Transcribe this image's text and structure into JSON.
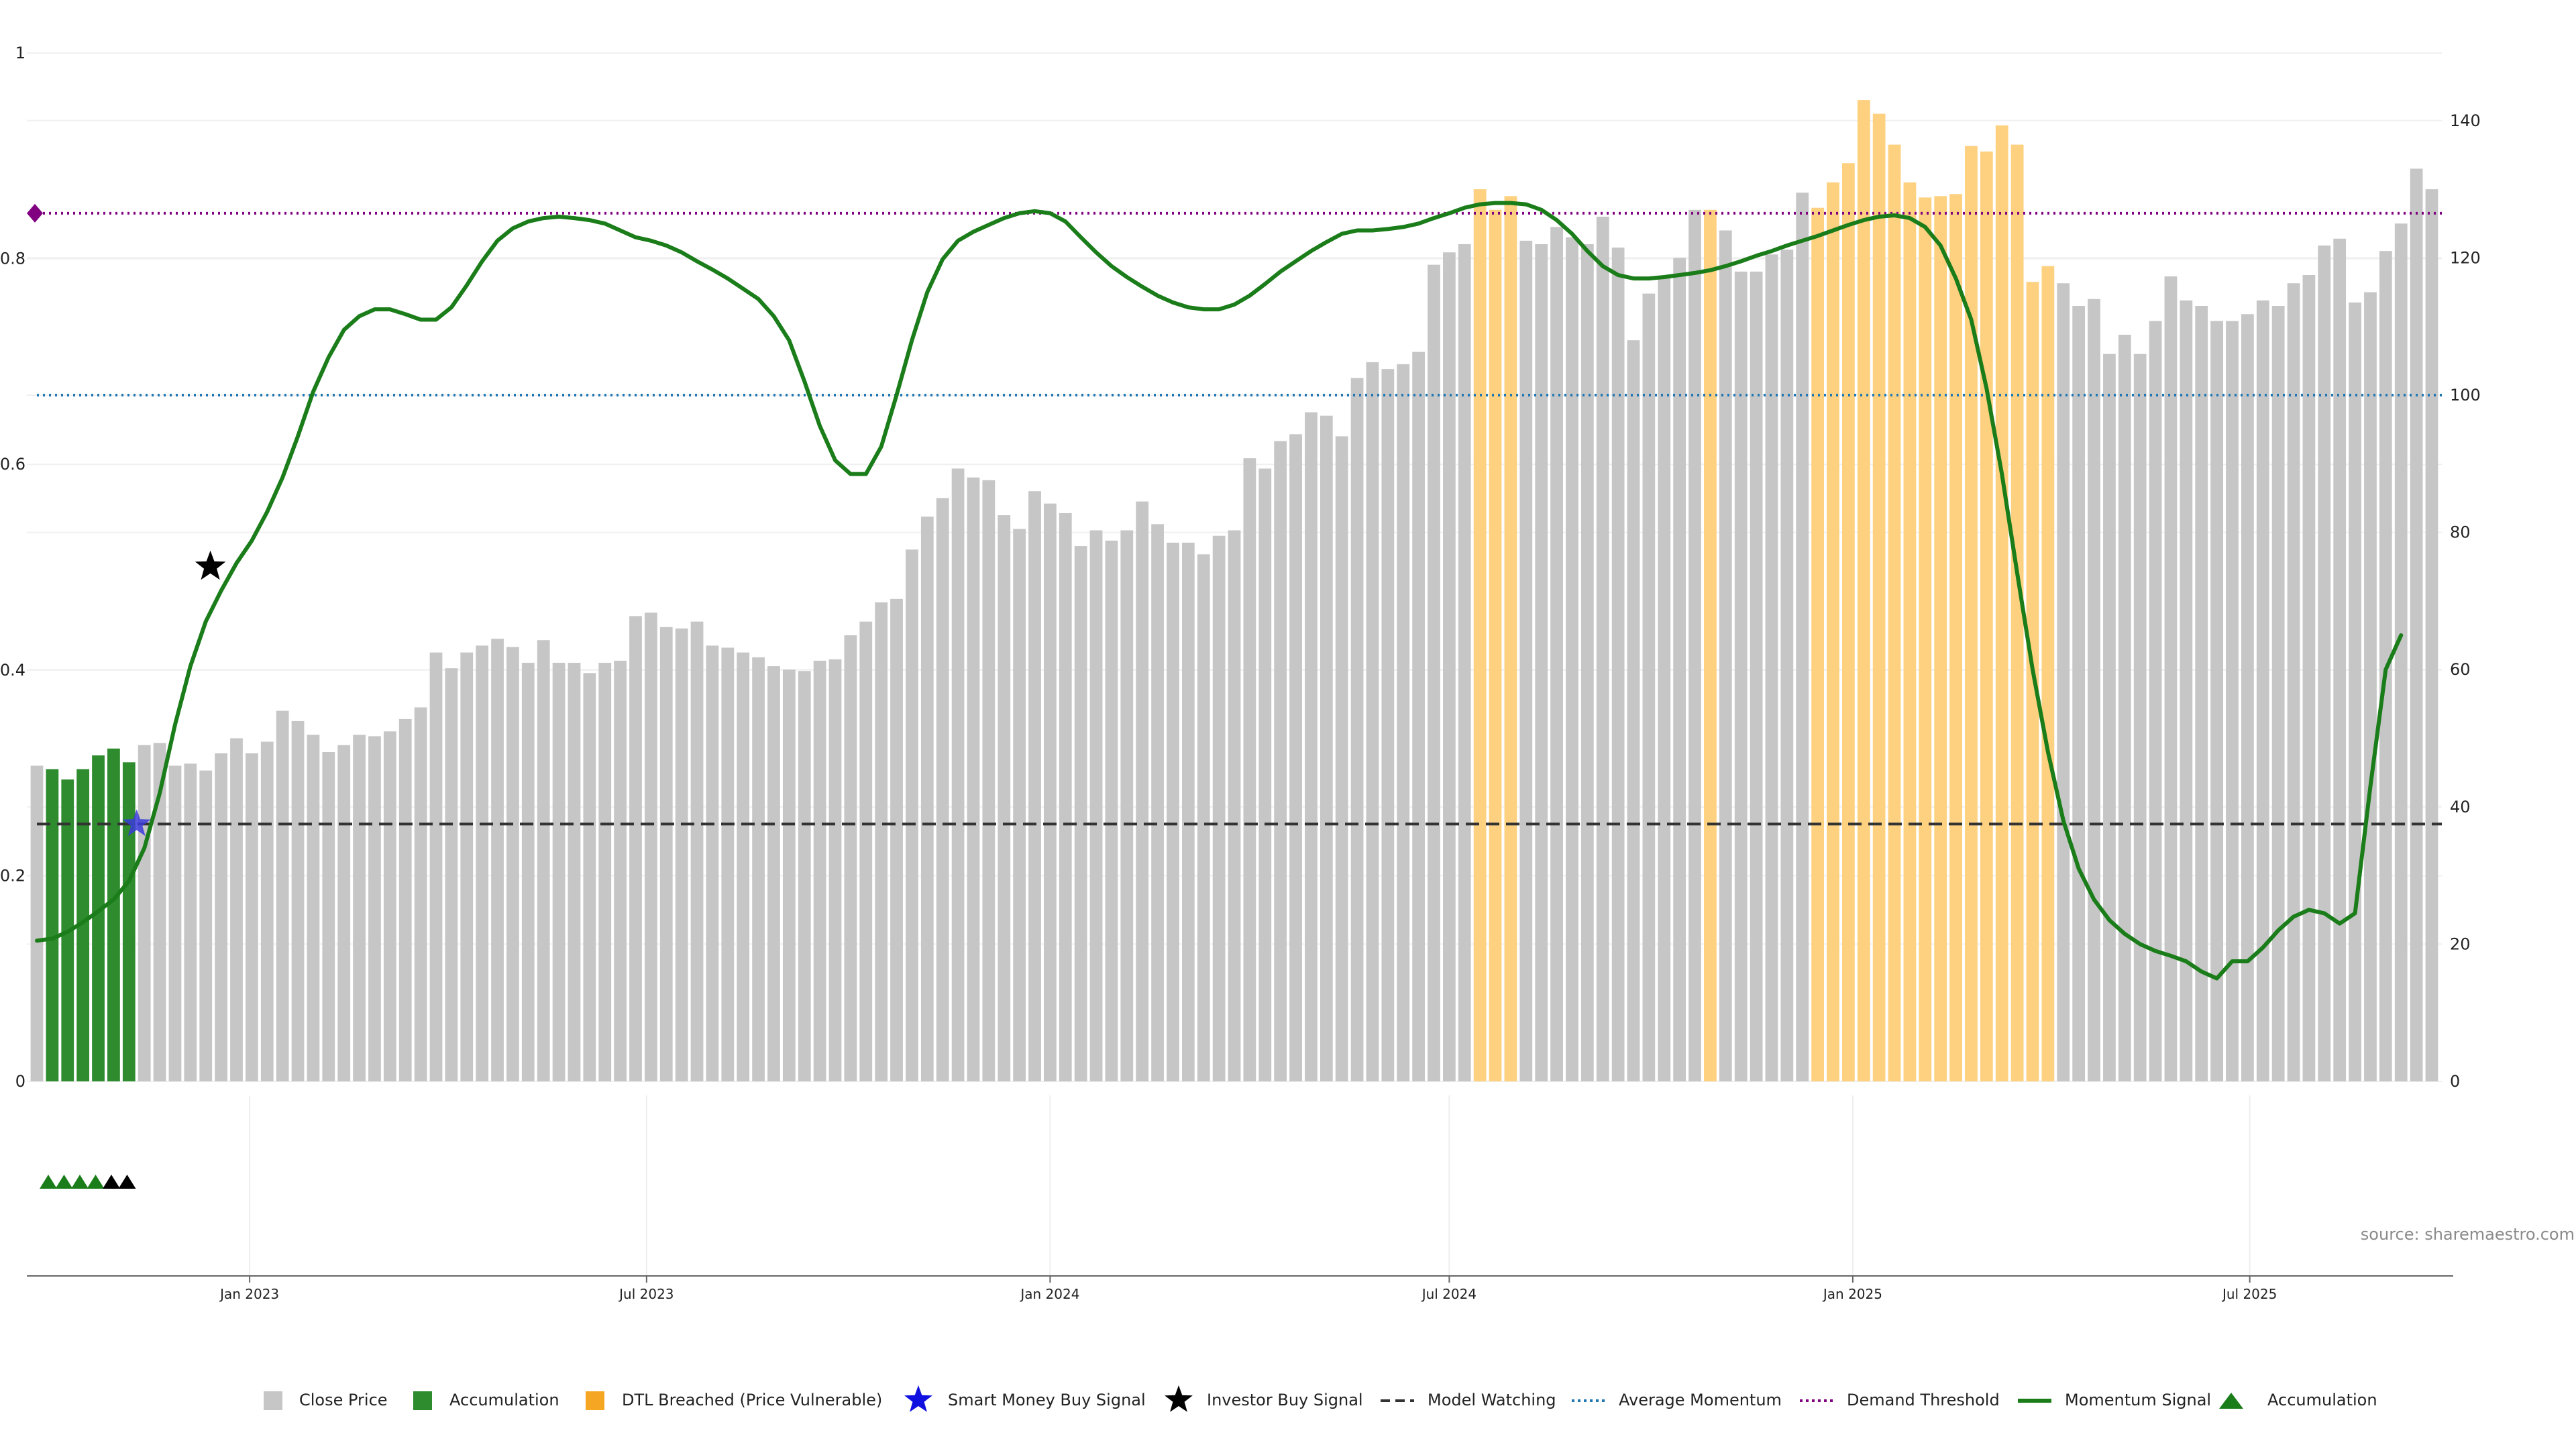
{
  "source_label": "source: sharemaestro.com",
  "colors": {
    "close_price": "#c6c6c6",
    "accumulation_bar": "#2e8b2e",
    "dtl_breached": "#fdd17f",
    "momentum_line": "#1a7d1a",
    "demand_threshold": "#800080",
    "average_momentum": "#1f77b4",
    "model_watching": "#333333",
    "smart_money_star": "#3a3ad9",
    "investor_star": "#000000",
    "accum_triangle_green": "#1a7d1a",
    "accum_triangle_black": "#000000"
  },
  "legend": {
    "close_price": "Close Price",
    "accumulation": "Accumulation",
    "dtl_breached": "DTL Breached (Price Vulnerable)",
    "smart_money": "Smart Money Buy Signal",
    "investor_buy": "Investor Buy Signal",
    "model_watching": "Model Watching",
    "average_momentum": "Average Momentum",
    "demand_threshold": "Demand Threshold",
    "momentum_signal": "Momentum Signal",
    "accumulation_marker": "Accumulation"
  },
  "chart_data": {
    "type": "bar",
    "left_axis": {
      "ylim": [
        0,
        1
      ],
      "ticks": [
        "0",
        "0.2",
        "0.4",
        "0.6",
        "0.8",
        "1"
      ]
    },
    "right_axis": {
      "ylim": [
        0,
        150
      ],
      "ticks": [
        "0",
        "20",
        "40",
        "60",
        "80",
        "100",
        "120",
        "140"
      ]
    },
    "x_ticks": [
      "Jan 2023",
      "Jul 2023",
      "Jan 2024",
      "Jul 2024",
      "Jan 2025",
      "Jul 2025"
    ],
    "x_start_week": "2022-09-26",
    "week_count": 157,
    "price": [
      46,
      45.5,
      44,
      45.5,
      47.5,
      48.5,
      46.5,
      49,
      49.3,
      46,
      46.3,
      45.3,
      47.8,
      50,
      47.8,
      49.5,
      54,
      52.5,
      50.5,
      48,
      49,
      50.5,
      50.3,
      51,
      52.8,
      54.5,
      62.5,
      60.2,
      62.5,
      63.5,
      64.5,
      63.3,
      61,
      64.3,
      61,
      61,
      59.5,
      61,
      61.3,
      67.8,
      68.3,
      66.2,
      66,
      67,
      63.5,
      63.2,
      62.5,
      61.8,
      60.5,
      60,
      59.8,
      61.3,
      61.5,
      65,
      67,
      69.8,
      70.3,
      77.5,
      82.3,
      85,
      89.3,
      88,
      87.6,
      82.5,
      80.5,
      86,
      84.2,
      82.8,
      78,
      80.3,
      78.8,
      80.3,
      84.5,
      81.2,
      78.5,
      78.5,
      76.8,
      79.5,
      80.3,
      90.8,
      89.3,
      93.3,
      94.3,
      97.5,
      97,
      94,
      102.5,
      104.8,
      103.8,
      104.5,
      106.3,
      119,
      120.8,
      122,
      130,
      127,
      129,
      122.5,
      122,
      124.5,
      123,
      122,
      126,
      121.5,
      108,
      114.8,
      117.3,
      120,
      127,
      127,
      124,
      118,
      118,
      120.5,
      121.2,
      129.5,
      127.3,
      131,
      133.8,
      143,
      141,
      136.5,
      131,
      128.8,
      129,
      129.3,
      136.3,
      135.5,
      139.3,
      136.5,
      116.5,
      118.8,
      116.3,
      113,
      114,
      106,
      108.8,
      106,
      110.8,
      117.3,
      113.8,
      113,
      110.8,
      110.8,
      111.8,
      113.8,
      113,
      116.3,
      117.5,
      121.8,
      122.8,
      113.5,
      115,
      121,
      125,
      133,
      130
    ],
    "accumulation_weeks": [
      1,
      2,
      3,
      4,
      5,
      6
    ],
    "dtl_breached_weeks": [
      94,
      95,
      96,
      109,
      116,
      117,
      118,
      119,
      120,
      121,
      122,
      123,
      124,
      125,
      126,
      127,
      128,
      129,
      130,
      131
    ],
    "momentum_signal": [
      [
        0,
        20.5
      ],
      [
        1,
        20.8
      ],
      [
        2,
        21.8
      ],
      [
        3,
        23.2
      ],
      [
        4,
        24.8
      ],
      [
        5,
        26.5
      ],
      [
        6,
        29.2
      ],
      [
        7,
        34
      ],
      [
        8,
        42
      ],
      [
        9,
        52
      ],
      [
        10,
        60.5
      ],
      [
        11,
        67
      ],
      [
        12,
        71.5
      ],
      [
        13,
        75.5
      ],
      [
        14,
        78.8
      ],
      [
        15,
        83
      ],
      [
        16,
        88
      ],
      [
        17,
        94
      ],
      [
        18,
        100.5
      ],
      [
        19,
        105.5
      ],
      [
        20,
        109.5
      ],
      [
        21,
        111.5
      ],
      [
        22,
        112.5
      ],
      [
        23,
        112.5
      ],
      [
        24,
        111.8
      ],
      [
        25,
        111
      ],
      [
        26,
        111
      ],
      [
        27,
        112.8
      ],
      [
        28,
        116
      ],
      [
        29,
        119.5
      ],
      [
        30,
        122.5
      ],
      [
        31,
        124.3
      ],
      [
        32,
        125.3
      ],
      [
        33,
        125.8
      ],
      [
        34,
        126
      ],
      [
        35,
        125.8
      ],
      [
        36,
        125.5
      ],
      [
        37,
        125
      ],
      [
        38,
        124
      ],
      [
        39,
        123
      ],
      [
        40,
        122.5
      ],
      [
        41,
        121.8
      ],
      [
        42,
        120.8
      ],
      [
        43,
        119.5
      ],
      [
        44,
        118.3
      ],
      [
        45,
        117
      ],
      [
        46,
        115.5
      ],
      [
        47,
        114
      ],
      [
        48,
        111.5
      ],
      [
        49,
        108
      ],
      [
        50,
        102
      ],
      [
        51,
        95.5
      ],
      [
        52,
        90.5
      ],
      [
        53,
        88.5
      ],
      [
        54,
        88.5
      ],
      [
        55,
        92.5
      ],
      [
        56,
        100
      ],
      [
        57,
        108
      ],
      [
        58,
        115
      ],
      [
        59,
        119.8
      ],
      [
        60,
        122.5
      ],
      [
        61,
        123.8
      ],
      [
        62,
        124.8
      ],
      [
        63,
        125.8
      ],
      [
        64,
        126.5
      ],
      [
        65,
        126.8
      ],
      [
        66,
        126.5
      ],
      [
        67,
        125.3
      ],
      [
        68,
        123
      ],
      [
        69,
        120.8
      ],
      [
        70,
        118.8
      ],
      [
        71,
        117.2
      ],
      [
        72,
        115.8
      ],
      [
        73,
        114.5
      ],
      [
        74,
        113.5
      ],
      [
        75,
        112.8
      ],
      [
        76,
        112.5
      ],
      [
        77,
        112.5
      ],
      [
        78,
        113.2
      ],
      [
        79,
        114.5
      ],
      [
        80,
        116.2
      ],
      [
        81,
        118
      ],
      [
        82,
        119.5
      ],
      [
        83,
        121
      ],
      [
        84,
        122.3
      ],
      [
        85,
        123.5
      ],
      [
        86,
        124
      ],
      [
        87,
        124
      ],
      [
        88,
        124.2
      ],
      [
        89,
        124.5
      ],
      [
        90,
        125
      ],
      [
        91,
        125.8
      ],
      [
        92,
        126.5
      ],
      [
        93,
        127.3
      ],
      [
        94,
        127.8
      ],
      [
        95,
        128
      ],
      [
        96,
        128
      ],
      [
        97,
        127.8
      ],
      [
        98,
        127
      ],
      [
        99,
        125.5
      ],
      [
        100,
        123.5
      ],
      [
        101,
        121
      ],
      [
        102,
        118.8
      ],
      [
        103,
        117.5
      ],
      [
        104,
        117
      ],
      [
        105,
        117
      ],
      [
        106,
        117.2
      ],
      [
        107,
        117.5
      ],
      [
        108,
        117.8
      ],
      [
        109,
        118.2
      ],
      [
        110,
        118.8
      ],
      [
        111,
        119.5
      ],
      [
        112,
        120.3
      ],
      [
        113,
        121
      ],
      [
        114,
        121.8
      ],
      [
        115,
        122.5
      ],
      [
        116,
        123.2
      ],
      [
        117,
        124
      ],
      [
        118,
        124.8
      ],
      [
        119,
        125.5
      ],
      [
        120,
        126
      ],
      [
        121,
        126.2
      ],
      [
        122,
        125.8
      ],
      [
        123,
        124.5
      ],
      [
        124,
        121.8
      ],
      [
        125,
        117
      ],
      [
        126,
        111
      ],
      [
        127,
        101
      ],
      [
        128,
        88.5
      ],
      [
        129,
        74
      ],
      [
        130,
        60
      ],
      [
        131,
        48
      ],
      [
        132,
        38
      ],
      [
        133,
        31
      ],
      [
        134,
        26.5
      ],
      [
        135,
        23.5
      ],
      [
        136,
        21.5
      ],
      [
        137,
        20
      ],
      [
        138,
        19
      ],
      [
        139,
        18.3
      ],
      [
        140,
        17.5
      ],
      [
        141,
        16
      ],
      [
        142,
        15
      ],
      [
        143,
        17.5
      ],
      [
        144,
        17.5
      ],
      [
        145,
        19.5
      ],
      [
        146,
        22
      ],
      [
        147,
        24
      ],
      [
        148,
        25
      ],
      [
        149,
        24.5
      ],
      [
        150,
        23
      ],
      [
        151,
        24.5
      ],
      [
        152,
        43
      ],
      [
        153,
        60
      ],
      [
        154,
        65
      ]
    ],
    "model_watching_level": 37.5,
    "average_momentum_level": 100,
    "demand_threshold_level": 126.5,
    "smart_money_signal": {
      "week": 6.5,
      "value": 37.5
    },
    "investor_buy_signal": {
      "week": 11.3,
      "value": 75
    },
    "demand_threshold_marker_value": 126.5,
    "accumulation_markers": [
      {
        "week": 1,
        "color": "green"
      },
      {
        "week": 2,
        "color": "green"
      },
      {
        "week": 3,
        "color": "green"
      },
      {
        "week": 4,
        "color": "green"
      },
      {
        "week": 5,
        "color": "black"
      },
      {
        "week": 6,
        "color": "black"
      }
    ]
  }
}
